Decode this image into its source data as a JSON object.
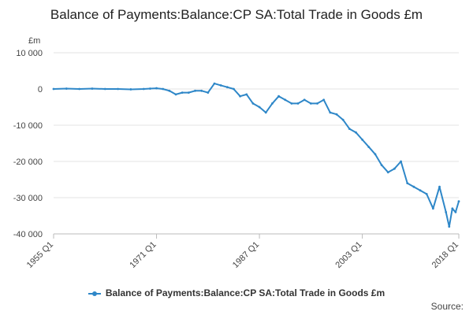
{
  "chart_data": {
    "type": "line",
    "title": "Balance of Payments:Balance:CP SA:Total Trade in Goods £m",
    "ylabel": "£m",
    "xlabel": "",
    "ylim": [
      -40000,
      10000
    ],
    "yticks": [
      10000,
      0,
      -10000,
      -20000,
      -30000,
      -40000
    ],
    "ytick_labels": [
      "10 000",
      "0",
      "-10 000",
      "-20 000",
      "-30 000",
      "-40 000"
    ],
    "xlim": [
      1955,
      2018
    ],
    "xticks": [
      1955,
      1971,
      1987,
      2003,
      2018
    ],
    "xtick_labels": [
      "1955 Q1",
      "1971 Q1",
      "1987 Q1",
      "2003 Q1",
      "2018 Q1"
    ],
    "grid": true,
    "legend_position": "bottom",
    "series": [
      {
        "name": "Balance of Payments:Balance:CP SA:Total Trade in Goods £m",
        "color": "#2e87c8",
        "x": [
          1955,
          1957,
          1959,
          1961,
          1963,
          1965,
          1967,
          1969,
          1970,
          1971,
          1972,
          1973,
          1974,
          1975,
          1976,
          1977,
          1978,
          1979,
          1980,
          1981,
          1982,
          1983,
          1984,
          1985,
          1986,
          1987,
          1988,
          1989,
          1990,
          1991,
          1992,
          1993,
          1994,
          1995,
          1996,
          1997,
          1998,
          1999,
          2000,
          2001,
          2002,
          2003,
          2004,
          2005,
          2006,
          2007,
          2008,
          2009,
          2010,
          2011,
          2012,
          2013,
          2014,
          2015,
          2016,
          2016.5,
          2017,
          2017.5,
          2018
        ],
        "values": [
          0,
          100,
          0,
          100,
          0,
          0,
          -100,
          0,
          100,
          200,
          0,
          -500,
          -1500,
          -1000,
          -1000,
          -500,
          -500,
          -1000,
          1500,
          1000,
          500,
          0,
          -2000,
          -1500,
          -4000,
          -5000,
          -6500,
          -4000,
          -2000,
          -3000,
          -4000,
          -4000,
          -3000,
          -4000,
          -4000,
          -3000,
          -6500,
          -7000,
          -8500,
          -11000,
          -12000,
          -14000,
          -16000,
          -18000,
          -21000,
          -23000,
          -22000,
          -20000,
          -26000,
          -27000,
          -28000,
          -29000,
          -33000,
          -27000,
          -34000,
          -38000,
          -33000,
          -34000,
          -31000
        ]
      }
    ]
  },
  "source_label": "Source:"
}
